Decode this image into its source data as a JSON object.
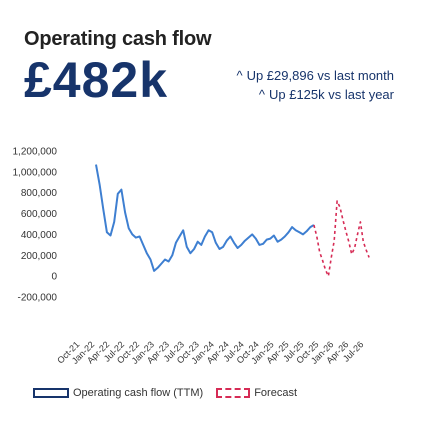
{
  "header": {
    "title": "Operating cash flow",
    "value": "£482k",
    "deltas": [
      {
        "arrow": "^",
        "text": "Up £29,896 vs last month"
      },
      {
        "arrow": "^",
        "text": "Up £125k vs last year"
      }
    ]
  },
  "colors": {
    "actual": "#3e7fd1",
    "forecast": "#d62b55",
    "value_text": "#17346b",
    "legend_actual_border": "#17346b"
  },
  "legend": {
    "actual": "Operating cash flow (TTM)",
    "forecast": "Forecast"
  },
  "chart_data": {
    "type": "line",
    "ylim": [
      -200000,
      1200000
    ],
    "yticks": [
      1200000,
      1000000,
      800000,
      600000,
      400000,
      200000,
      0,
      -200000
    ],
    "ytick_labels": [
      "1,200,000",
      "1,000,000",
      "800,000",
      "600,000",
      "400,000",
      "200,000",
      "0",
      "-200,000"
    ],
    "xtick_labels": [
      "Oct-21",
      "Jan-22",
      "Apr-22",
      "Jul-22",
      "Oct-22",
      "Jan-23",
      "Apr-23",
      "Jul-23",
      "Oct-23",
      "Jan-24",
      "Apr-24",
      "Jul-24",
      "Oct-24",
      "Jan-25",
      "Apr-25",
      "Jul-25",
      "Oct-25",
      "Jan-26",
      "Apr-26",
      "Jul-26"
    ],
    "x_range": [
      0,
      19
    ],
    "series": [
      {
        "name": "Operating cash flow (TTM)",
        "style": "solid",
        "x": [
          0,
          0.25,
          0.5,
          0.75,
          1.0,
          1.25,
          1.5,
          1.75,
          2.0,
          2.25,
          2.5,
          2.75,
          3.0,
          3.25,
          3.5,
          3.75,
          4.0,
          4.25,
          4.5,
          4.75,
          5.0,
          5.25,
          5.5,
          5.75,
          6.0,
          6.25,
          6.5,
          6.75,
          7.0,
          7.25,
          7.5,
          7.75,
          8.0,
          8.25,
          8.5,
          8.75,
          9.0,
          9.25,
          9.5,
          9.75,
          10.0,
          10.25,
          10.5,
          10.75,
          11.0,
          11.25,
          11.5,
          11.75,
          12.0,
          12.25,
          12.5,
          12.75,
          13.0,
          13.25,
          13.5,
          13.75,
          14.0,
          14.25,
          14.5,
          14.75,
          15.0
        ],
        "values": [
          1070000,
          880000,
          640000,
          420000,
          390000,
          520000,
          790000,
          830000,
          610000,
          460000,
          400000,
          370000,
          380000,
          300000,
          220000,
          160000,
          50000,
          80000,
          120000,
          160000,
          140000,
          200000,
          320000,
          380000,
          440000,
          280000,
          220000,
          260000,
          330000,
          300000,
          380000,
          440000,
          420000,
          320000,
          260000,
          280000,
          340000,
          380000,
          320000,
          270000,
          300000,
          340000,
          370000,
          400000,
          360000,
          300000,
          310000,
          350000,
          360000,
          390000,
          330000,
          350000,
          380000,
          420000,
          470000,
          440000,
          420000,
          400000,
          430000,
          470000,
          490000
        ]
      },
      {
        "name": "Forecast",
        "style": "dashed",
        "x": [
          15.0,
          15.2,
          15.4,
          15.6,
          15.8,
          16.0,
          16.2,
          16.4,
          16.6,
          16.8,
          17.0,
          17.2,
          17.4,
          17.6,
          17.8,
          18.0,
          18.2,
          18.4,
          18.6,
          18.8
        ],
        "values": [
          490000,
          380000,
          230000,
          150000,
          60000,
          0,
          180000,
          340000,
          720000,
          660000,
          540000,
          430000,
          330000,
          210000,
          270000,
          400000,
          520000,
          330000,
          250000,
          180000
        ]
      }
    ]
  }
}
